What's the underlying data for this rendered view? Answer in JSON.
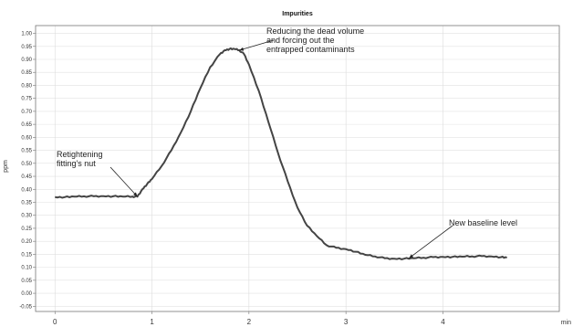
{
  "chart_data": {
    "type": "line",
    "title": "Impurities",
    "xlabel": "min",
    "ylabel": "ppm",
    "xlim": [
      -0.2,
      5.2
    ],
    "ylim": [
      -0.07,
      1.03
    ],
    "grid": true,
    "x_ticks": [
      "0",
      "1",
      "2",
      "3",
      "4"
    ],
    "y_ticks": [
      "-0.05",
      "0.00",
      "0.05",
      "0.10",
      "0.15",
      "0.20",
      "0.25",
      "0.30",
      "0.35",
      "0.40",
      "0.45",
      "0.50",
      "0.55",
      "0.60",
      "0.65",
      "0.70",
      "0.75",
      "0.80",
      "0.85",
      "0.90",
      "0.95",
      "1.00"
    ],
    "series": [
      {
        "x": [
          0.0,
          0.1,
          0.2,
          0.3,
          0.4,
          0.5,
          0.6,
          0.7,
          0.8,
          0.85,
          0.9,
          0.95,
          1.0,
          1.1,
          1.2,
          1.3,
          1.4,
          1.5,
          1.6,
          1.7,
          1.75,
          1.8,
          1.85,
          1.9,
          1.95,
          2.0,
          2.1,
          2.2,
          2.3,
          2.4,
          2.5,
          2.6,
          2.7,
          2.8,
          2.9,
          3.0,
          3.1,
          3.2,
          3.3,
          3.4,
          3.5,
          3.6,
          3.7,
          3.8,
          3.9,
          4.0,
          4.1,
          4.2,
          4.3,
          4.4,
          4.5,
          4.6,
          4.66
        ],
        "y": [
          0.37,
          0.37,
          0.372,
          0.373,
          0.373,
          0.374,
          0.373,
          0.372,
          0.372,
          0.372,
          0.4,
          0.42,
          0.44,
          0.49,
          0.55,
          0.62,
          0.7,
          0.79,
          0.87,
          0.92,
          0.935,
          0.94,
          0.94,
          0.935,
          0.92,
          0.88,
          0.78,
          0.66,
          0.54,
          0.43,
          0.33,
          0.26,
          0.22,
          0.185,
          0.175,
          0.17,
          0.16,
          0.148,
          0.142,
          0.135,
          0.133,
          0.133,
          0.135,
          0.137,
          0.139,
          0.14,
          0.14,
          0.141,
          0.142,
          0.143,
          0.142,
          0.139,
          0.137
        ]
      }
    ],
    "annotations": [
      {
        "lines": [
          "Retightening",
          "fitting's nut"
        ],
        "x": 0.85,
        "y": 0.372
      },
      {
        "lines": [
          "Reducing the dead volume",
          "and forcing out the",
          "entrapped contaminants"
        ],
        "x": 1.9,
        "y": 0.935
      },
      {
        "lines": [
          "New baseline level"
        ],
        "x": 3.65,
        "y": 0.135
      }
    ]
  }
}
